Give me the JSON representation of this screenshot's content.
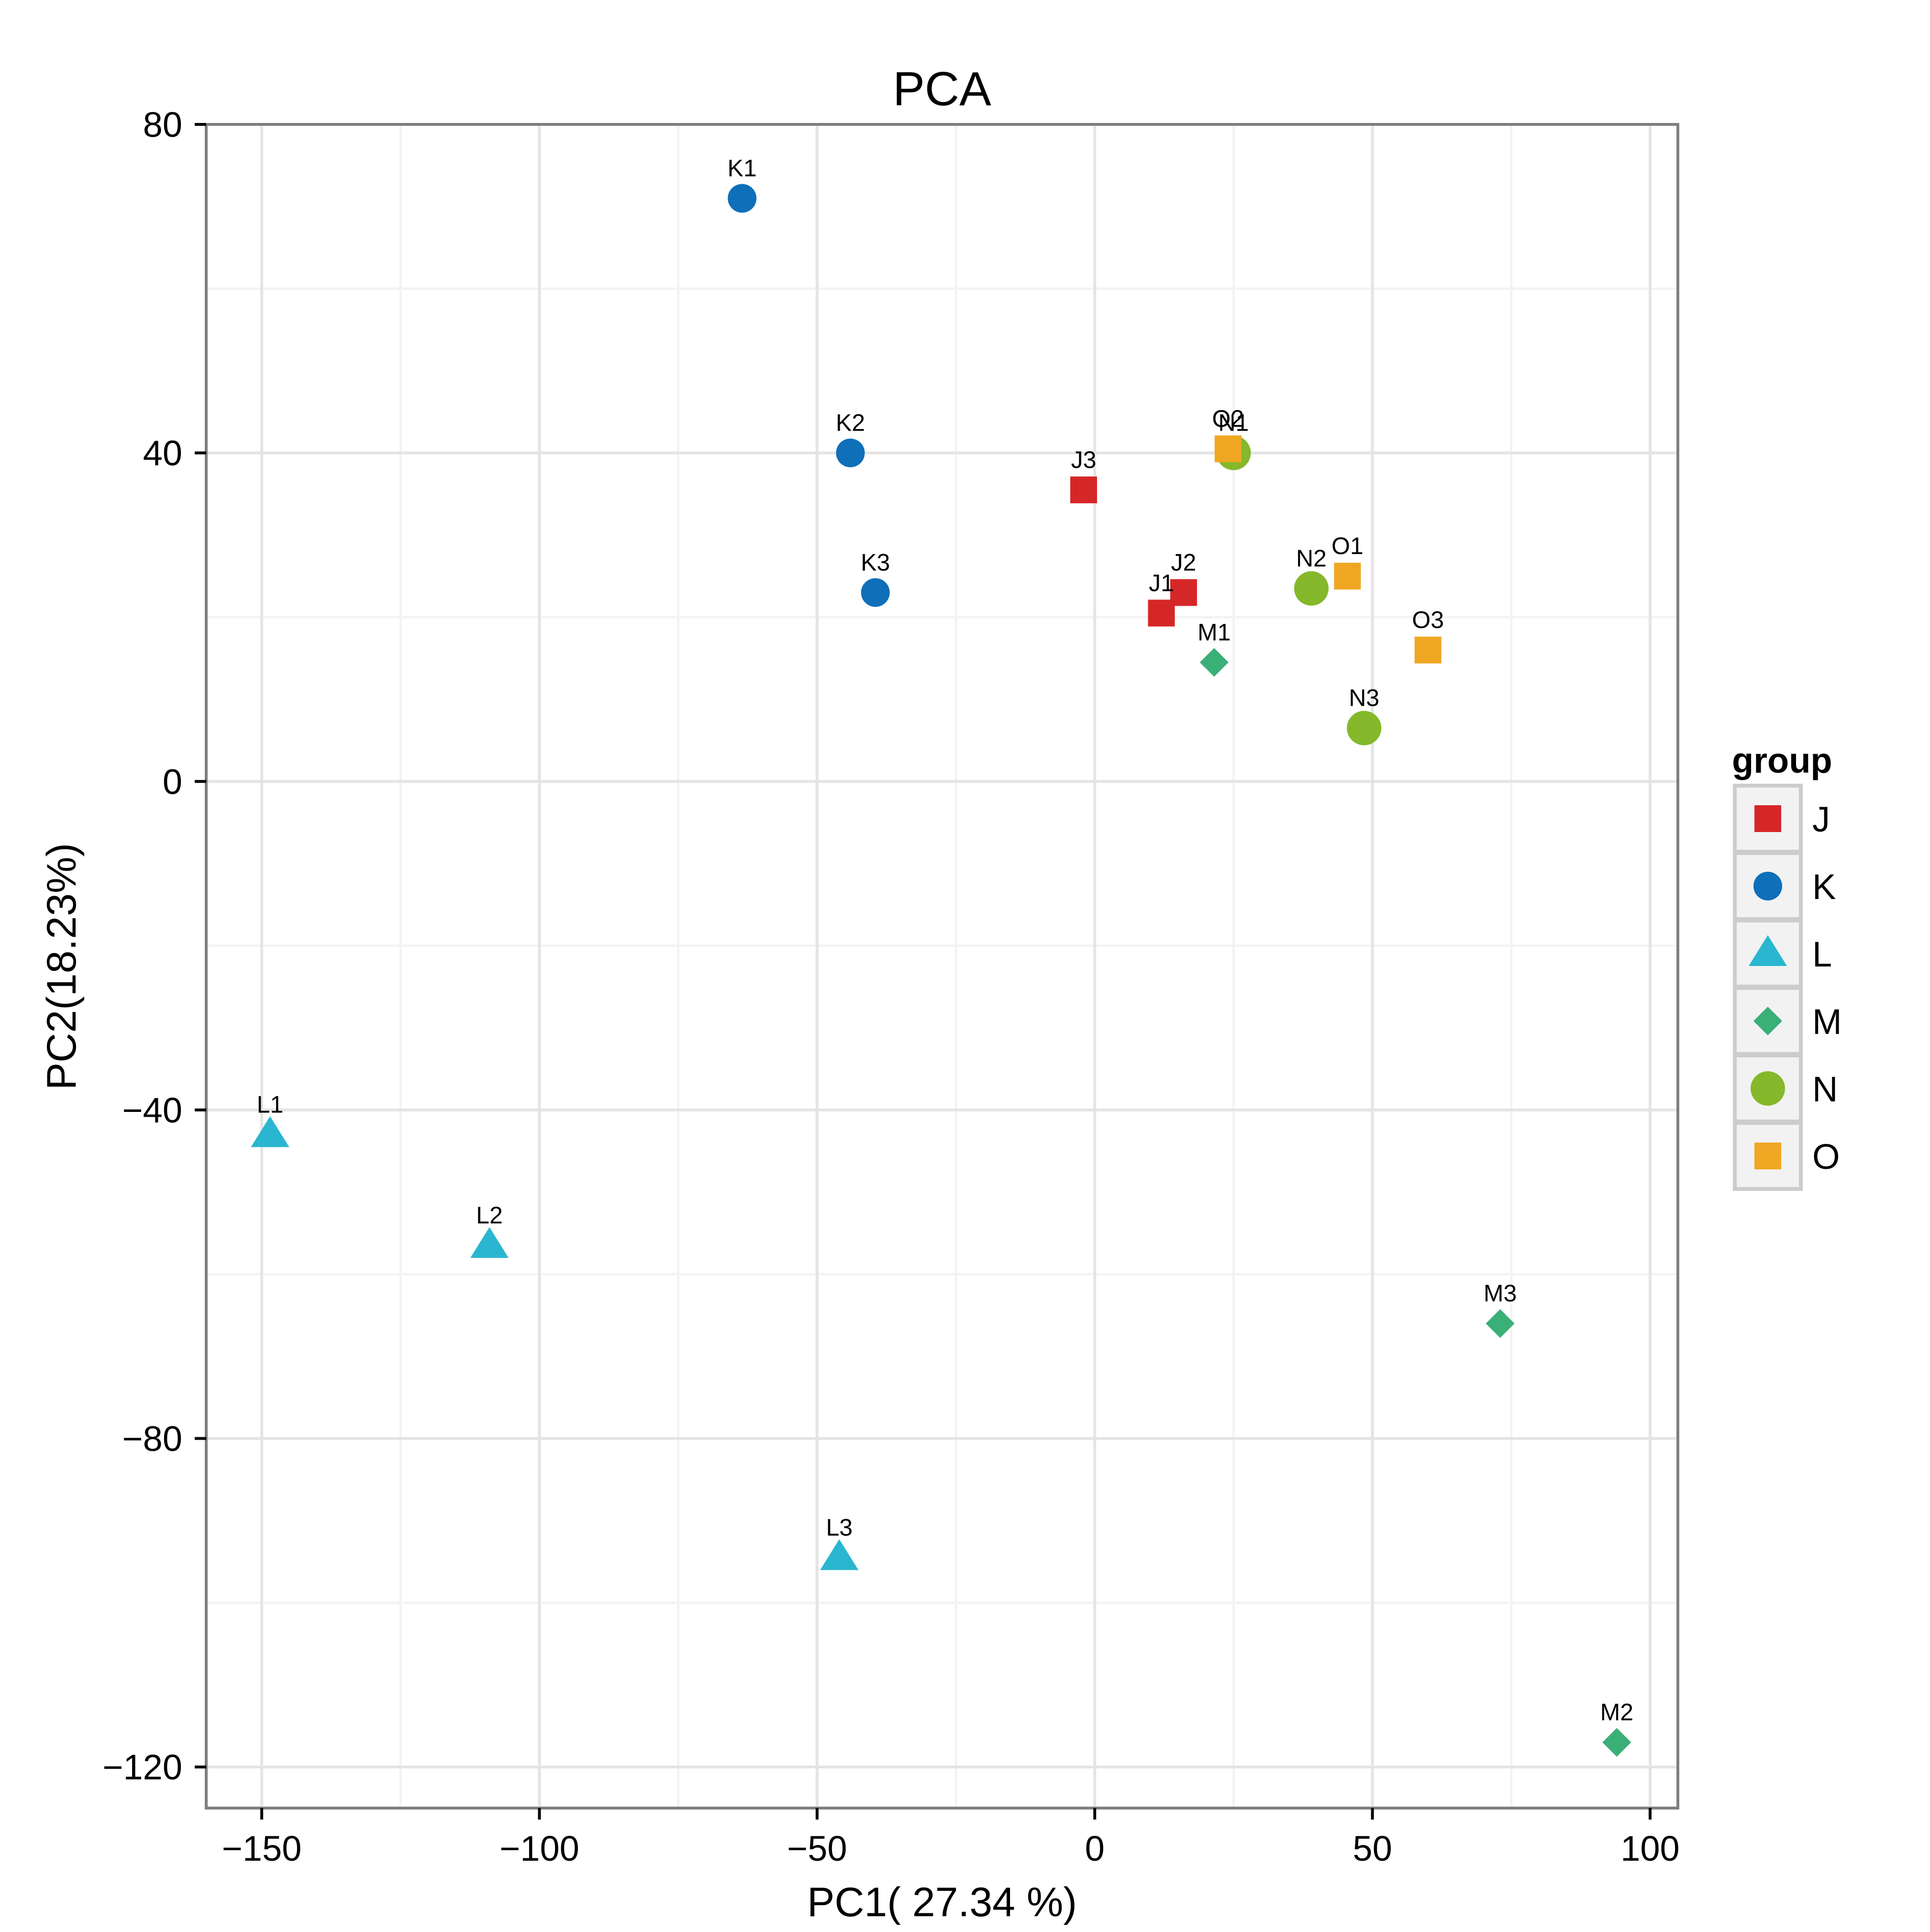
{
  "chart_data": {
    "type": "scatter",
    "title": "PCA",
    "xlabel": "PC1( 27.34 %)",
    "ylabel": "PC2(18.23%)",
    "xlim": [
      -160,
      105
    ],
    "ylim": [
      -125,
      80
    ],
    "xticks": [
      -150,
      -100,
      -50,
      0,
      50,
      100
    ],
    "xtick_labels": [
      "−150",
      "−100",
      "−50",
      "0",
      "50",
      "100"
    ],
    "yticks": [
      -120,
      -80,
      -40,
      0,
      40,
      80
    ],
    "ytick_labels": [
      "−120",
      "−80",
      "−40",
      "0",
      "40",
      "80"
    ],
    "grid": true,
    "legend": {
      "title": "group",
      "position": "right"
    },
    "series": [
      {
        "name": "J",
        "shape": "square",
        "color": "#d62728",
        "points": [
          {
            "label": "J1",
            "x": 12,
            "y": 20.5
          },
          {
            "label": "J2",
            "x": 16,
            "y": 23
          },
          {
            "label": "J3",
            "x": -2,
            "y": 35.5
          }
        ]
      },
      {
        "name": "K",
        "shape": "circle",
        "color": "#0f6fb8",
        "points": [
          {
            "label": "K1",
            "x": -63.5,
            "y": 71
          },
          {
            "label": "K2",
            "x": -44,
            "y": 40
          },
          {
            "label": "K3",
            "x": -39.5,
            "y": 23
          }
        ]
      },
      {
        "name": "L",
        "shape": "triangle",
        "color": "#2ab6d0",
        "points": [
          {
            "label": "L1",
            "x": -148.5,
            "y": -43
          },
          {
            "label": "L2",
            "x": -109,
            "y": -56.5
          },
          {
            "label": "L3",
            "x": -46,
            "y": -94.5
          }
        ]
      },
      {
        "name": "M",
        "shape": "diamond",
        "color": "#3aaf77",
        "points": [
          {
            "label": "M1",
            "x": 21.5,
            "y": 14.5
          },
          {
            "label": "M2",
            "x": 94,
            "y": -117
          },
          {
            "label": "M3",
            "x": 73,
            "y": -66
          }
        ]
      },
      {
        "name": "N",
        "shape": "circle-large",
        "color": "#85b82a",
        "points": [
          {
            "label": "N1",
            "x": 25,
            "y": 40
          },
          {
            "label": "N2",
            "x": 39,
            "y": 23.5
          },
          {
            "label": "N3",
            "x": 48.5,
            "y": 6.5
          }
        ]
      },
      {
        "name": "O",
        "shape": "square",
        "color": "#efa723",
        "points": [
          {
            "label": "O1",
            "x": 45.5,
            "y": 25
          },
          {
            "label": "O2",
            "x": 24,
            "y": 40.5
          },
          {
            "label": "O3",
            "x": 60,
            "y": 16
          }
        ]
      }
    ]
  }
}
